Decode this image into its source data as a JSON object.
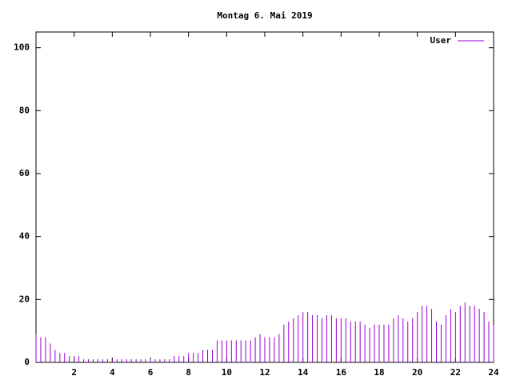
{
  "chart_data": {
    "type": "impulse",
    "title": "Montag 6. Mai 2019",
    "x": [
      0,
      0.25,
      0.5,
      0.75,
      1,
      1.25,
      1.5,
      1.75,
      2,
      2.25,
      2.5,
      2.75,
      3,
      3.25,
      3.5,
      3.75,
      4,
      4.25,
      4.5,
      4.75,
      5,
      5.25,
      5.5,
      5.75,
      6,
      6.25,
      6.5,
      6.75,
      7,
      7.25,
      7.5,
      7.75,
      8,
      8.25,
      8.5,
      8.75,
      9,
      9.25,
      9.5,
      9.75,
      10,
      10.25,
      10.5,
      10.75,
      11,
      11.25,
      11.5,
      11.75,
      12,
      12.25,
      12.5,
      12.75,
      13,
      13.25,
      13.5,
      13.75,
      14,
      14.25,
      14.5,
      14.75,
      15,
      15.25,
      15.5,
      15.75,
      16,
      16.25,
      16.5,
      16.75,
      17,
      17.25,
      17.5,
      17.75,
      18,
      18.25,
      18.5,
      18.75,
      19,
      19.25,
      19.5,
      19.75,
      20,
      20.25,
      20.5,
      20.75,
      21,
      21.25,
      21.5,
      21.75,
      22,
      22.25,
      22.5,
      22.75,
      23,
      23.25,
      23.5,
      23.75,
      24
    ],
    "series": [
      {
        "name": "User",
        "color": "#9400d3",
        "values": [
          9,
          8,
          8,
          6,
          4,
          3,
          3,
          2,
          2,
          2,
          1,
          1,
          1,
          1,
          1,
          1,
          1,
          1,
          1,
          1,
          1,
          1,
          1,
          1,
          1,
          1,
          1,
          1,
          1,
          2,
          2,
          2,
          3,
          3,
          3,
          4,
          4,
          4,
          7,
          7,
          7,
          7,
          7,
          7,
          7,
          7,
          8,
          9,
          8,
          8,
          8,
          9,
          12,
          13,
          14,
          15,
          16,
          16,
          15,
          15,
          14,
          15,
          15,
          14,
          14,
          14,
          13,
          13,
          13,
          12,
          11,
          12,
          12,
          12,
          12,
          14,
          15,
          14,
          13,
          14,
          16,
          18,
          18,
          17,
          13,
          12,
          15,
          17,
          16,
          18,
          19,
          18,
          18,
          17,
          16,
          13,
          12
        ]
      }
    ],
    "xlim": [
      0,
      24
    ],
    "xticks": [
      2,
      4,
      6,
      8,
      10,
      12,
      14,
      16,
      18,
      20,
      22,
      24
    ],
    "ylim": [
      0,
      105
    ],
    "yticks": [
      0,
      20,
      40,
      60,
      80,
      100
    ],
    "legend": "top-right"
  }
}
